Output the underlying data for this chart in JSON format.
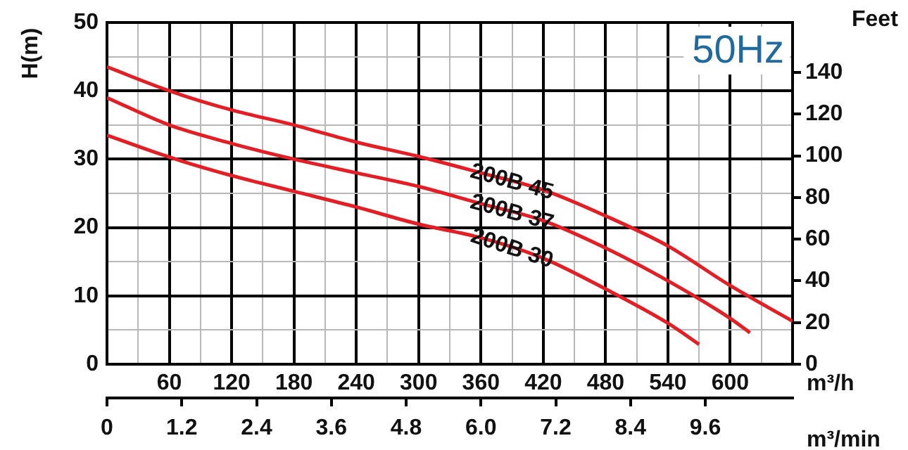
{
  "chart_data": {
    "type": "line",
    "ylabel": "H(m)",
    "y2label": "Feet",
    "xlabel": "m³/h",
    "x2label": "m³/min",
    "annotations": [
      "50Hz"
    ],
    "series": [
      {
        "name": "200B 45",
        "color": "#e31e24",
        "x": [
          0,
          60,
          120,
          180,
          240,
          300,
          360,
          420,
          480,
          540,
          600,
          660
        ],
        "values": [
          43.5,
          40,
          37.2,
          35,
          32.5,
          30.4,
          28,
          25.5,
          21.7,
          17.3,
          11.5,
          6.3
        ]
      },
      {
        "name": "200B 37",
        "color": "#e31e24",
        "x": [
          0,
          60,
          120,
          180,
          240,
          300,
          360,
          420,
          480,
          540,
          600,
          619
        ],
        "values": [
          39,
          35,
          32.3,
          30,
          28,
          26,
          23.5,
          21,
          17,
          12.2,
          6.7,
          4.6
        ]
      },
      {
        "name": "200B 30",
        "color": "#e31e24",
        "x": [
          0,
          60,
          120,
          180,
          240,
          300,
          360,
          420,
          480,
          540,
          570
        ],
        "values": [
          33.5,
          30.3,
          27.6,
          25.3,
          23,
          20.5,
          18.5,
          15.5,
          11,
          6,
          2.9
        ]
      }
    ],
    "xlim": [
      0,
      660
    ],
    "xticks": [
      {
        "value": 30,
        "label": null
      },
      60,
      {
        "value": 90,
        "label": null
      },
      120,
      {
        "value": 150,
        "label": null
      },
      180,
      {
        "value": 210,
        "label": null
      },
      240,
      {
        "value": 270,
        "label": null
      },
      300,
      {
        "value": 330,
        "label": null
      },
      360,
      {
        "value": 390,
        "label": null
      },
      420,
      {
        "value": 450,
        "label": null
      },
      480,
      {
        "value": 510,
        "label": null
      },
      540,
      {
        "value": 570,
        "label": null
      },
      600,
      {
        "value": 630,
        "label": null
      }
    ],
    "x2lim": [
      0,
      11
    ],
    "x2ticks": [
      0,
      1.2,
      2.4,
      3.6,
      4.8,
      {
        "value": 6,
        "label": "6.0"
      },
      7.2,
      8.4,
      9.6
    ],
    "ylim": [
      0,
      50
    ],
    "yticks": [
      0,
      {
        "value": 5,
        "label": null
      },
      10,
      {
        "value": 15,
        "label": null
      },
      20,
      {
        "value": 25,
        "label": null
      },
      30,
      {
        "value": 35,
        "label": null
      },
      40,
      {
        "value": 45,
        "label": null
      },
      50
    ],
    "y2lim": [
      0,
      164
    ],
    "y2ticks": [
      0,
      20,
      40,
      60,
      80,
      100,
      120,
      140
    ],
    "grid": true,
    "legend": false,
    "marker": "none",
    "line_style": "solid"
  }
}
